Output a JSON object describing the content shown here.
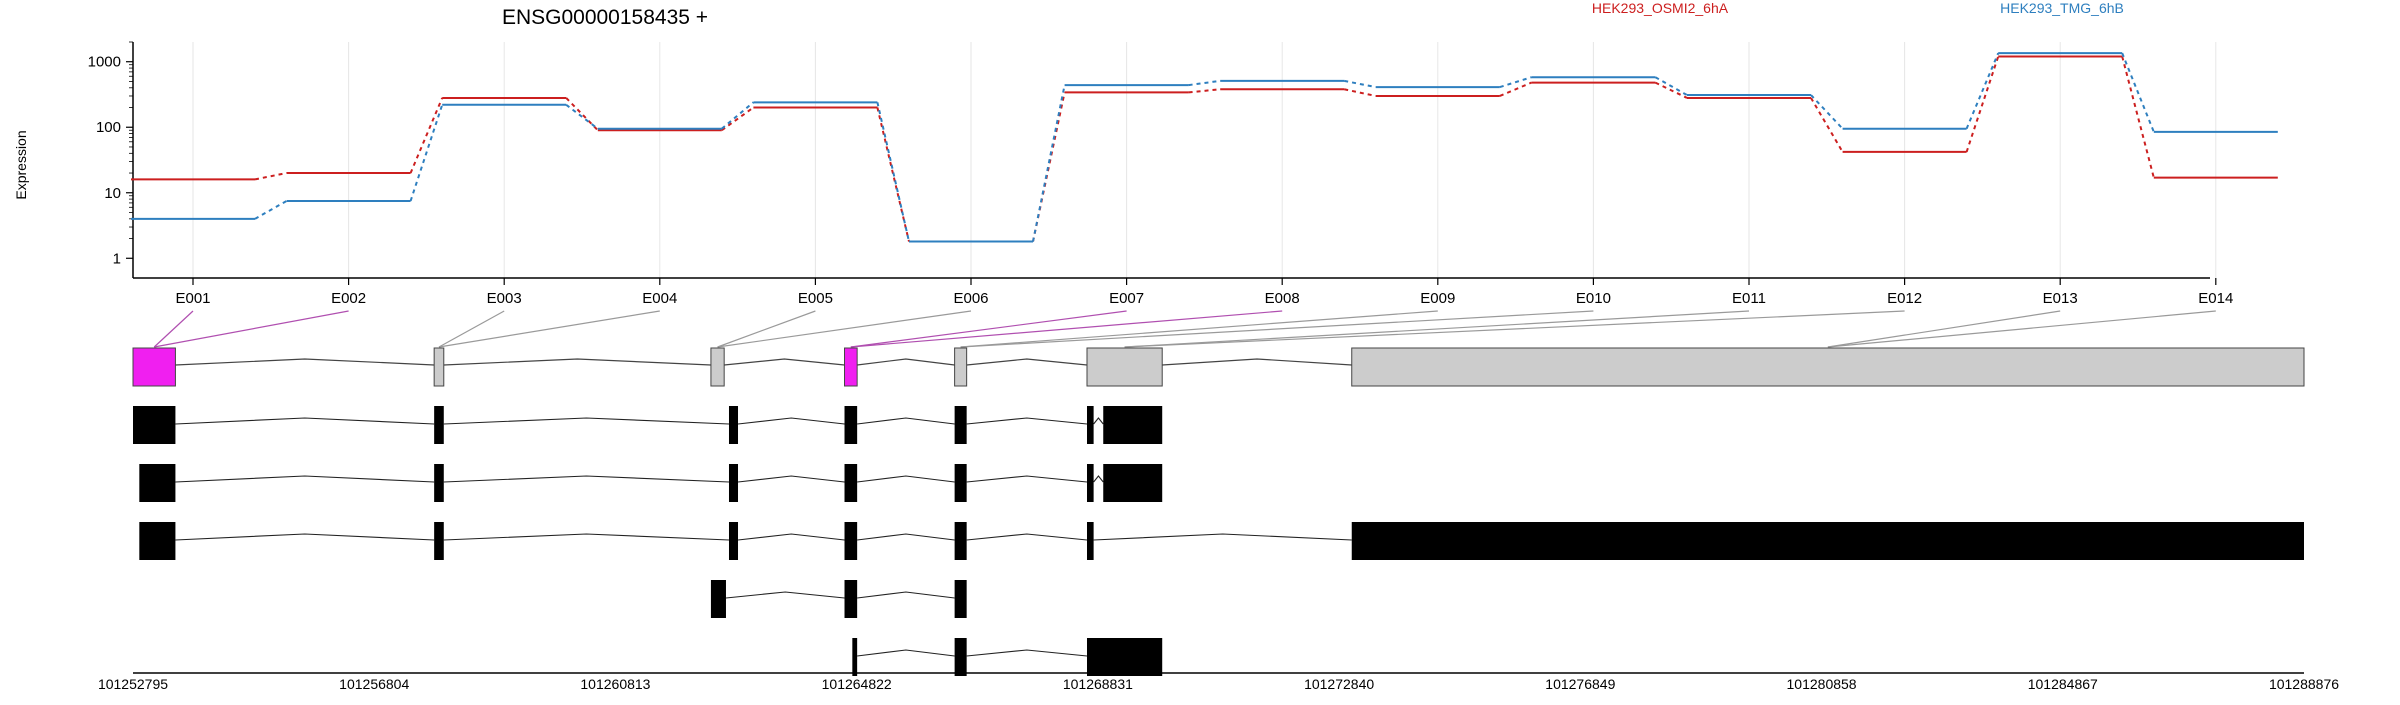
{
  "chart_data": {
    "type": "line",
    "title": "ENSG00000158435 +",
    "ylabel": "Expression",
    "yscale": "log",
    "ylim": [
      0.5,
      2000
    ],
    "yticks": [
      "1",
      "10",
      "100",
      "1000"
    ],
    "yticks_values": [
      1,
      10,
      100,
      1000
    ],
    "categories": [
      "E001",
      "E002",
      "E003",
      "E004",
      "E005",
      "E006",
      "E007",
      "E008",
      "E009",
      "E010",
      "E011",
      "E012",
      "E013",
      "E014"
    ],
    "series": [
      {
        "name": "HEK293_OSMI2_6hA",
        "color": "#cc1f1f",
        "values": [
          16,
          20,
          280,
          90,
          200,
          1.8,
          340,
          380,
          300,
          480,
          280,
          42,
          1200,
          17
        ]
      },
      {
        "name": "HEK293_TMG_6hB",
        "color": "#2e7fbf",
        "values": [
          4,
          7.5,
          220,
          95,
          240,
          1.8,
          440,
          510,
          410,
          580,
          310,
          95,
          1350,
          85
        ]
      }
    ],
    "genomic_axis": {
      "labels": [
        "101252795",
        "101256804",
        "101260813",
        "101264822",
        "101268831",
        "101272840",
        "101276849",
        "101280858",
        "101284867",
        "101288876"
      ],
      "start": 101252795,
      "end": 101288876
    },
    "gene_model": {
      "exon_bins": [
        {
          "start": 101252795,
          "end": 101253500,
          "highlight": true
        },
        {
          "start": 101257800,
          "end": 101257960,
          "highlight": false
        },
        {
          "start": 101262400,
          "end": 101262620,
          "highlight": false
        },
        {
          "start": 101264620,
          "end": 101264830,
          "highlight": true
        },
        {
          "start": 101266450,
          "end": 101266650,
          "highlight": false
        },
        {
          "start": 101268650,
          "end": 101269900,
          "highlight": false
        },
        {
          "start": 101273050,
          "end": 101288876,
          "highlight": false
        }
      ],
      "transcripts": [
        [
          [
            101252795,
            101253500
          ],
          [
            101257800,
            101257960
          ],
          [
            101262700,
            101262850
          ],
          [
            101264620,
            101264830
          ],
          [
            101266450,
            101266650
          ],
          [
            101268650,
            101268760
          ],
          [
            101268920,
            101269900
          ]
        ],
        [
          [
            101252900,
            101253500
          ],
          [
            101257800,
            101257960
          ],
          [
            101262700,
            101262850
          ],
          [
            101264620,
            101264830
          ],
          [
            101266450,
            101266650
          ],
          [
            101268650,
            101268760
          ],
          [
            101268920,
            101269900
          ]
        ],
        [
          [
            101252900,
            101253500
          ],
          [
            101257800,
            101257960
          ],
          [
            101262700,
            101262850
          ],
          [
            101264620,
            101264830
          ],
          [
            101266450,
            101266650
          ],
          [
            101268650,
            101268760
          ],
          [
            101273050,
            101288876
          ]
        ],
        [
          [
            101262400,
            101262650
          ],
          [
            101264620,
            101264830
          ],
          [
            101266450,
            101266650
          ]
        ],
        [
          [
            101264750,
            101264830
          ],
          [
            101266450,
            101266650
          ],
          [
            101268650,
            101269900
          ]
        ]
      ]
    }
  }
}
